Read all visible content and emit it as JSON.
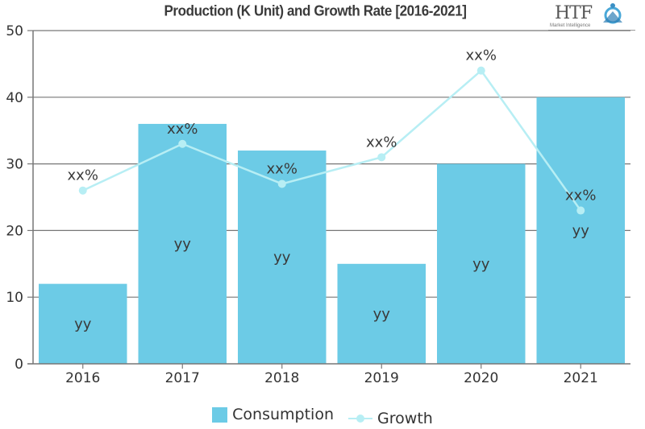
{
  "chart_data": {
    "type": "bar",
    "title": "Production (K Unit) and Growth Rate [2016-2021]",
    "xlabel": "",
    "ylabel": "",
    "ylim": [
      0,
      50
    ],
    "yticks": [
      0,
      10,
      20,
      30,
      40,
      50
    ],
    "grid": true,
    "categories": [
      "2016",
      "2017",
      "2018",
      "2019",
      "2020",
      "2021"
    ],
    "series": [
      {
        "name": "Consumption",
        "type": "bar",
        "color": "#6ccbe6",
        "values": [
          12,
          36,
          32,
          15,
          30,
          40
        ],
        "labels": [
          "yy",
          "yy",
          "yy",
          "yy",
          "yy",
          "yy"
        ]
      },
      {
        "name": "Growth",
        "type": "line",
        "color": "#b7eef4",
        "values": [
          26,
          33,
          27,
          31,
          44,
          23
        ],
        "labels": [
          "xx%",
          "xx%",
          "xx%",
          "xx%",
          "xx%",
          "xx%"
        ]
      }
    ],
    "legend_position": "bottom-center"
  },
  "logo": {
    "text": "HTF",
    "subtext": "Market Intelligence"
  }
}
